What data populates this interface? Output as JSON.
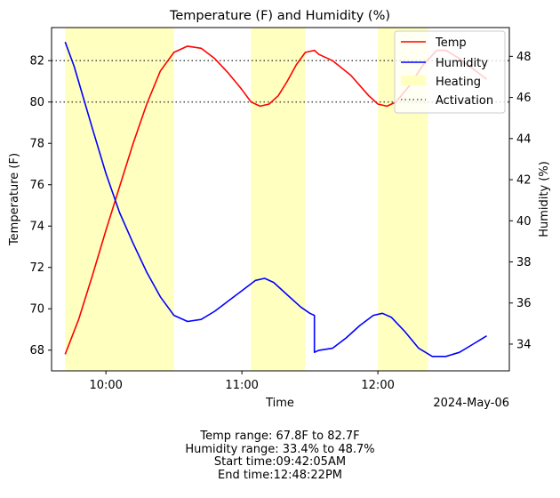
{
  "chart_data": {
    "type": "line",
    "title": "Temperature (F) and Humidity (%)",
    "xlabel": "Time",
    "ylabel_left": "Temperature (F)",
    "ylabel_right": "Humidity (%)",
    "date_label": "2024-May-06",
    "x_range": [
      "09:36",
      "12:58"
    ],
    "x_ticks": [
      "10:00",
      "11:00",
      "12:00"
    ],
    "y_left_range": [
      67.0,
      83.6
    ],
    "y_left_ticks": [
      68,
      70,
      72,
      74,
      76,
      78,
      80,
      82
    ],
    "y_right_range": [
      32.7,
      49.4
    ],
    "y_right_ticks": [
      34,
      36,
      38,
      40,
      42,
      44,
      46,
      48
    ],
    "activation_lines": [
      80,
      82
    ],
    "heating_periods": [
      [
        "09:42",
        "10:30"
      ],
      [
        "11:04",
        "11:28"
      ],
      [
        "12:00",
        "12:22"
      ]
    ],
    "legend": {
      "position": "top-right",
      "entries": [
        "Temp",
        "Humidity",
        "Heating",
        "Activation"
      ]
    },
    "colors": {
      "temp": "#ff0000",
      "humidity": "#0000ff",
      "heating": "#ffffc0",
      "activation": "#555555"
    },
    "series": [
      {
        "name": "Temp",
        "axis": "left",
        "points": [
          [
            "09:42",
            67.8
          ],
          [
            "09:48",
            69.5
          ],
          [
            "09:54",
            71.6
          ],
          [
            "10:00",
            73.8
          ],
          [
            "10:06",
            75.9
          ],
          [
            "10:12",
            78.0
          ],
          [
            "10:18",
            79.9
          ],
          [
            "10:24",
            81.5
          ],
          [
            "10:30",
            82.4
          ],
          [
            "10:36",
            82.7
          ],
          [
            "10:42",
            82.6
          ],
          [
            "10:48",
            82.1
          ],
          [
            "10:54",
            81.4
          ],
          [
            "11:00",
            80.6
          ],
          [
            "11:04",
            80.0
          ],
          [
            "11:08",
            79.8
          ],
          [
            "11:12",
            79.9
          ],
          [
            "11:16",
            80.3
          ],
          [
            "11:20",
            81.0
          ],
          [
            "11:24",
            81.8
          ],
          [
            "11:28",
            82.4
          ],
          [
            "11:32",
            82.5
          ],
          [
            "11:34",
            82.3
          ],
          [
            "11:40",
            82.0
          ],
          [
            "11:48",
            81.3
          ],
          [
            "11:56",
            80.3
          ],
          [
            "12:00",
            79.9
          ],
          [
            "12:04",
            79.8
          ],
          [
            "12:08",
            80.0
          ],
          [
            "12:14",
            80.8
          ],
          [
            "12:20",
            81.8
          ],
          [
            "12:26",
            82.5
          ],
          [
            "12:30",
            82.5
          ],
          [
            "12:36",
            82.1
          ],
          [
            "12:42",
            81.6
          ],
          [
            "12:48",
            81.1
          ]
        ]
      },
      {
        "name": "Humidity",
        "axis": "right",
        "points": [
          [
            "09:42",
            48.7
          ],
          [
            "09:46",
            47.5
          ],
          [
            "09:50",
            46.0
          ],
          [
            "09:54",
            44.5
          ],
          [
            "10:00",
            42.3
          ],
          [
            "10:06",
            40.4
          ],
          [
            "10:12",
            38.9
          ],
          [
            "10:18",
            37.5
          ],
          [
            "10:24",
            36.3
          ],
          [
            "10:30",
            35.4
          ],
          [
            "10:36",
            35.1
          ],
          [
            "10:42",
            35.2
          ],
          [
            "10:48",
            35.6
          ],
          [
            "10:54",
            36.1
          ],
          [
            "11:00",
            36.6
          ],
          [
            "11:06",
            37.1
          ],
          [
            "11:10",
            37.2
          ],
          [
            "11:14",
            37.0
          ],
          [
            "11:20",
            36.4
          ],
          [
            "11:26",
            35.8
          ],
          [
            "11:30",
            35.5
          ],
          [
            "11:32",
            35.4
          ],
          [
            "11:32",
            33.6
          ],
          [
            "11:34",
            33.7
          ],
          [
            "11:40",
            33.8
          ],
          [
            "11:46",
            34.3
          ],
          [
            "11:52",
            34.9
          ],
          [
            "11:58",
            35.4
          ],
          [
            "12:02",
            35.5
          ],
          [
            "12:06",
            35.3
          ],
          [
            "12:12",
            34.6
          ],
          [
            "12:18",
            33.8
          ],
          [
            "12:24",
            33.4
          ],
          [
            "12:30",
            33.4
          ],
          [
            "12:36",
            33.6
          ],
          [
            "12:42",
            34.0
          ],
          [
            "12:48",
            34.4
          ]
        ]
      }
    ]
  },
  "summary": {
    "temp_range": "Temp range: 67.8F to 82.7F",
    "humidity_range": "Humidity range: 33.4% to 48.7%",
    "start_time": "Start time:09:42:05AM",
    "end_time": "End time:12:48:22PM"
  }
}
